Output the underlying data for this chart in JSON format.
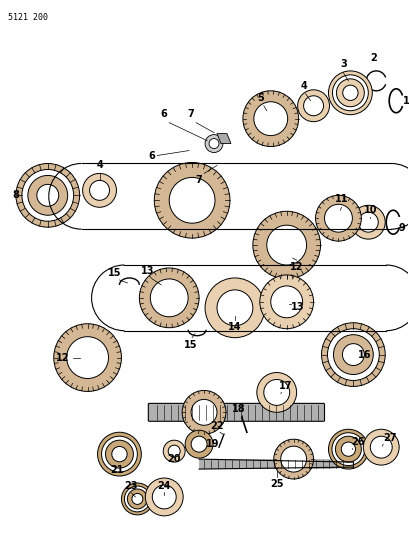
{
  "title": "5121 200",
  "bg_color": "#ffffff",
  "line_color": "#000000",
  "gear_fill": "#d4b896",
  "bearing_fill": "#c8a878",
  "ring_fill": "#e8d0b0",
  "shaft_fill": "#b0b0b0"
}
